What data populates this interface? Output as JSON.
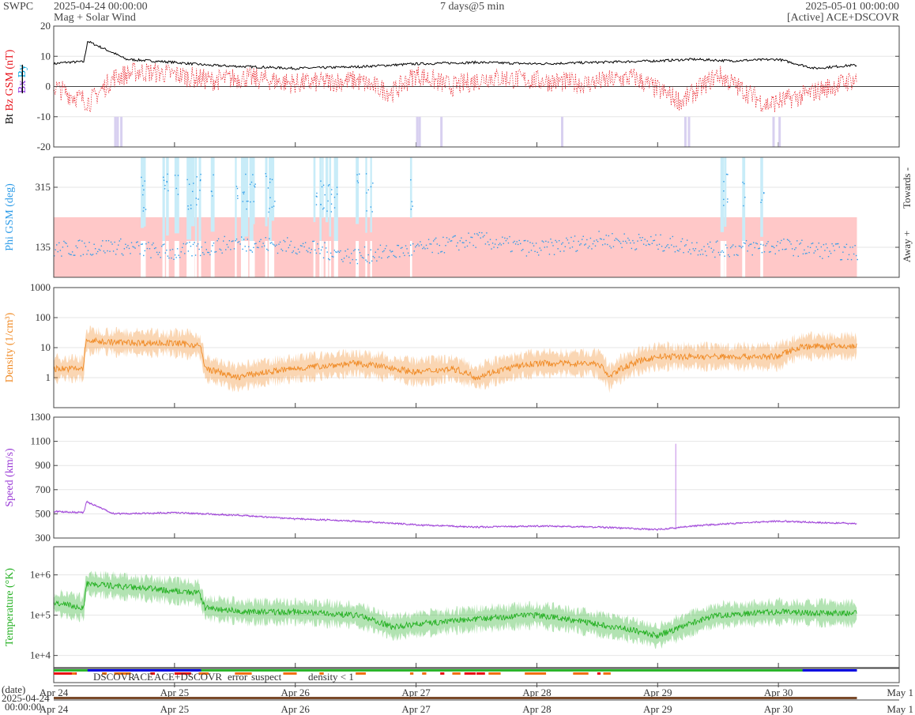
{
  "header": {
    "org": "SWPC",
    "start": "2025-04-24 00:00:00",
    "subtitle": "Mag + Solar Wind",
    "span": "7 days@5 min",
    "end": "2025-05-01 00:00:00",
    "source": "[Active] ACE+DSCOVR"
  },
  "colors": {
    "bt": "#000000",
    "bz": "#e8131b",
    "by": "#00a8e0",
    "bx": "#8a2be2",
    "phi": "#2c9be8",
    "away": "#ffc8c8",
    "towards": "#c8ecf8",
    "density": "#f08a24",
    "speed": "#9a3ad6",
    "temp": "#23b021",
    "dscovr": "#0000e0",
    "ace": "#2ab52a",
    "combo": "#e020e0",
    "error": "#e81010",
    "suspect": "#f0a000",
    "dlow": "#f07010"
  },
  "chart_data": [
    {
      "type": "line",
      "title": "",
      "ylabel": [
        "Bt",
        "Bz GSM (nT)",
        "Bx",
        "By"
      ],
      "ylim": [
        -20,
        20
      ],
      "yticks": [
        "20",
        "10",
        "0",
        "-10",
        "-20"
      ],
      "series": [
        {
          "name": "Bt",
          "x_days": [
            0,
            0.1,
            0.25,
            0.28,
            0.5,
            0.6,
            1.0,
            1.3,
            2.0,
            2.5,
            3.0,
            3.5,
            4.0,
            4.5,
            5.0,
            5.3,
            5.6,
            6.0,
            6.3,
            6.6
          ],
          "values": [
            7.5,
            8.0,
            8.2,
            15,
            11,
            9,
            8,
            7,
            6,
            6.5,
            7.5,
            8,
            7.5,
            8,
            8.5,
            9,
            8.5,
            9,
            6,
            7
          ]
        },
        {
          "name": "Bz",
          "x_days": [
            0,
            0.15,
            0.3,
            0.5,
            0.7,
            1.0,
            1.3,
            1.6,
            2.0,
            2.5,
            2.8,
            3.0,
            3.3,
            3.6,
            4.0,
            4.4,
            4.8,
            5.2,
            5.5,
            5.9,
            6.2,
            6.6
          ],
          "values": [
            0,
            -3,
            -5,
            3,
            5,
            4,
            2,
            3,
            1,
            2,
            -2,
            4,
            0,
            3,
            2,
            1,
            3,
            -5,
            4,
            -6,
            -3,
            2
          ]
        }
      ]
    },
    {
      "type": "scatter",
      "title": "",
      "ylabel": "Phi GSM (deg)",
      "ylim": [
        45,
        405
      ],
      "yticks": [
        "315",
        "135"
      ],
      "right_labels": [
        "Towards -",
        "Away +"
      ],
      "series": [
        {
          "name": "Phi",
          "x_days": [
            0,
            0.5,
            1.0,
            1.5,
            2.0,
            2.5,
            3.0,
            3.5,
            4.0,
            4.5,
            5.0,
            5.5,
            6.0,
            6.6
          ],
          "values": [
            130,
            140,
            120,
            150,
            140,
            110,
            130,
            160,
            130,
            160,
            150,
            130,
            140,
            120
          ]
        }
      ]
    },
    {
      "type": "line",
      "title": "",
      "ylabel": "Density (1/cm³)",
      "scale": "log",
      "ylim": [
        0.1,
        1000
      ],
      "yticks": [
        "1000",
        "100",
        "10",
        "1"
      ],
      "series": [
        {
          "name": "Density",
          "x_days": [
            0,
            0.25,
            0.27,
            0.5,
            1.0,
            1.2,
            1.25,
            1.5,
            2.0,
            2.5,
            3.0,
            3.3,
            3.5,
            4.0,
            4.5,
            4.6,
            5.0,
            5.5,
            6.0,
            6.2,
            6.6
          ],
          "values": [
            2,
            2,
            17,
            15,
            14,
            12,
            2,
            1,
            2,
            3,
            1.5,
            2,
            1,
            3,
            3,
            1,
            5,
            5,
            5,
            11,
            11
          ]
        }
      ]
    },
    {
      "type": "line",
      "title": "",
      "ylabel": "Speed (km/s)",
      "ylim": [
        300,
        1300
      ],
      "yticks": [
        "1300",
        "1100",
        "900",
        "700",
        "500",
        "300"
      ],
      "series": [
        {
          "name": "Speed",
          "x_days": [
            0,
            0.25,
            0.27,
            0.5,
            1.0,
            1.5,
            2.0,
            2.5,
            3.0,
            3.5,
            4.0,
            4.5,
            5.0,
            5.3,
            5.6,
            6.0,
            6.6
          ],
          "values": [
            520,
            510,
            600,
            500,
            510,
            490,
            460,
            440,
            410,
            390,
            400,
            390,
            370,
            400,
            420,
            440,
            420
          ]
        }
      ]
    },
    {
      "type": "line",
      "title": "",
      "ylabel": "Temperature (°K)",
      "scale": "log",
      "ylim": [
        5000,
        5000000
      ],
      "yticks": [
        "1e+6",
        "1e+5",
        "1e+4"
      ],
      "series": [
        {
          "name": "Temperature",
          "x_days": [
            0,
            0.25,
            0.27,
            0.6,
            1.0,
            1.2,
            1.25,
            1.6,
            2.0,
            2.5,
            2.8,
            3.0,
            3.5,
            4.0,
            4.5,
            5.0,
            5.2,
            5.5,
            6.0,
            6.6
          ],
          "values": [
            200000,
            150000,
            600000,
            500000,
            400000,
            350000,
            150000,
            120000,
            120000,
            100000,
            50000,
            60000,
            80000,
            100000,
            60000,
            30000,
            50000,
            100000,
            120000,
            110000
          ]
        }
      ]
    }
  ],
  "legend": [
    "DSCOVR",
    "ACE",
    "ACE+DSCOVR",
    "error",
    "suspect",
    "density < 1"
  ],
  "xaxis": {
    "date_label": "(date)",
    "ticks": [
      "Apr 24",
      "Apr 25",
      "Apr 26",
      "Apr 27",
      "Apr 28",
      "Apr 29",
      "Apr 30",
      "May 1"
    ],
    "bottom_date": "2025-04-24",
    "bottom_time": "00:00:00"
  }
}
